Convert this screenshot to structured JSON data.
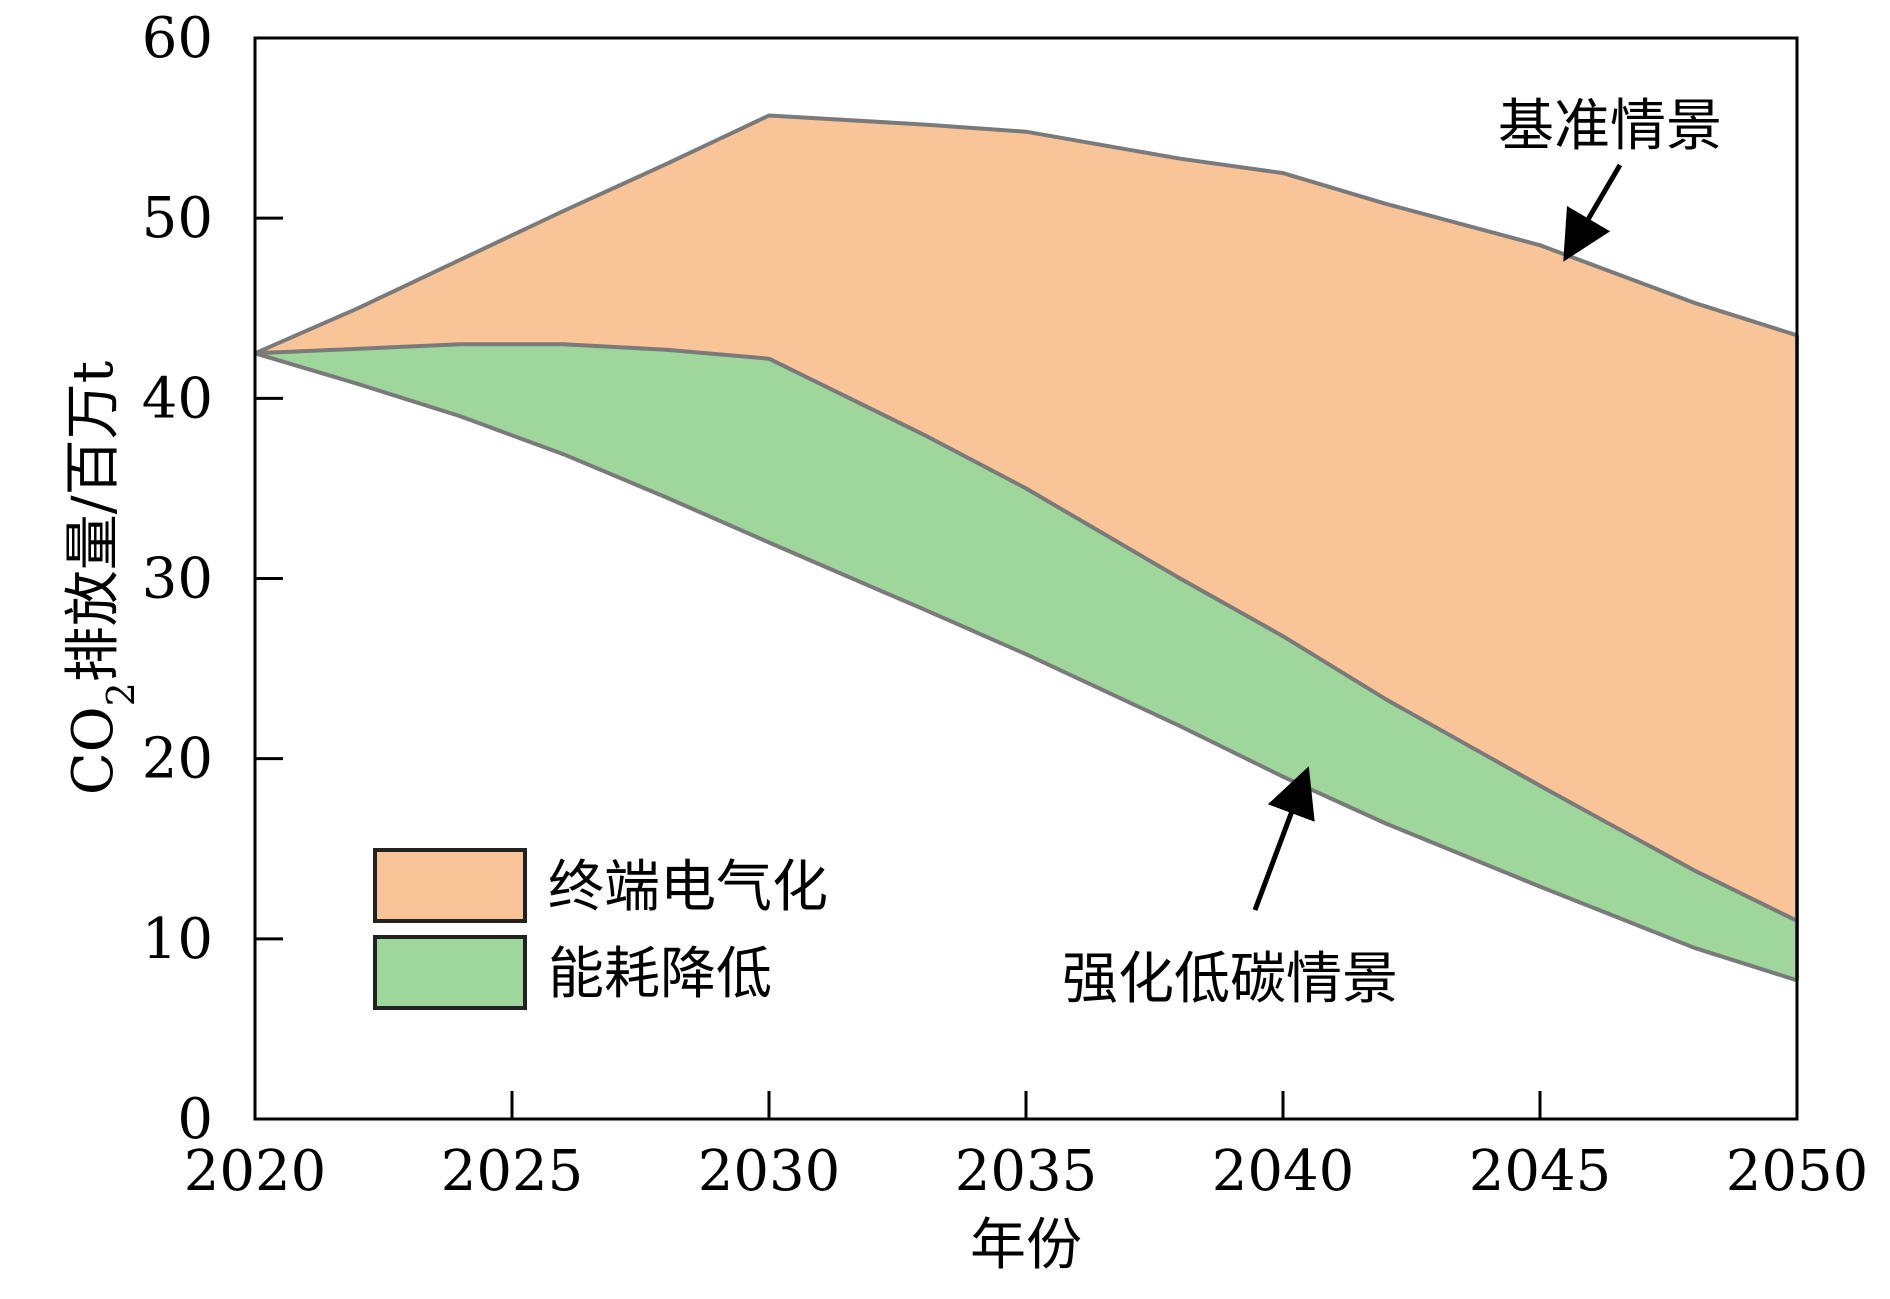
{
  "chart_data": {
    "type": "area",
    "xlabel": "年份",
    "ylabel_parts": {
      "pre": "CO",
      "sub": "2",
      "post": "排放量/百万t"
    },
    "xlim": [
      2020,
      2050
    ],
    "ylim": [
      0,
      60
    ],
    "xticks": [
      2020,
      2025,
      2030,
      2035,
      2040,
      2045,
      2050
    ],
    "yticks": [
      0,
      10,
      20,
      30,
      40,
      50,
      60
    ],
    "grid": false,
    "legend_position": "lower-left",
    "lines": {
      "baseline": {
        "x": [
          2020,
          2022,
          2024,
          2026,
          2028,
          2030,
          2033,
          2035,
          2038,
          2040,
          2042,
          2045,
          2048,
          2050
        ],
        "y": [
          42.5,
          45.0,
          47.7,
          50.4,
          53.0,
          55.7,
          55.2,
          54.8,
          53.3,
          52.5,
          50.8,
          48.5,
          45.3,
          43.5
        ]
      },
      "middle": {
        "x": [
          2020,
          2024,
          2026,
          2028,
          2030,
          2033,
          2035,
          2038,
          2040,
          2042,
          2045,
          2048,
          2050
        ],
        "y": [
          42.5,
          43.0,
          43.0,
          42.7,
          42.2,
          38.0,
          35.0,
          30.0,
          26.8,
          23.3,
          18.5,
          13.8,
          11.0
        ]
      },
      "low": {
        "x": [
          2020,
          2022,
          2024,
          2026,
          2028,
          2030,
          2033,
          2035,
          2038,
          2040,
          2042,
          2045,
          2048,
          2050
        ],
        "y": [
          42.5,
          40.8,
          39.0,
          36.9,
          34.5,
          32.0,
          28.3,
          25.8,
          21.8,
          19.0,
          16.4,
          12.9,
          9.5,
          7.7
        ]
      }
    },
    "series": [
      {
        "name": "终端电气化",
        "color": "#f9c598",
        "between": [
          "baseline",
          "middle"
        ]
      },
      {
        "name": "能耗降低",
        "color": "#9ed69c",
        "between": [
          "middle",
          "low"
        ]
      }
    ],
    "line_color": "#7a7a7a",
    "annotations": [
      {
        "text": "基准情景",
        "points_to": {
          "x": 2045.6,
          "y": 48.3
        }
      },
      {
        "text": "强化低碳情景",
        "points_to": {
          "x": 2040.4,
          "y": 18.8
        }
      }
    ]
  }
}
